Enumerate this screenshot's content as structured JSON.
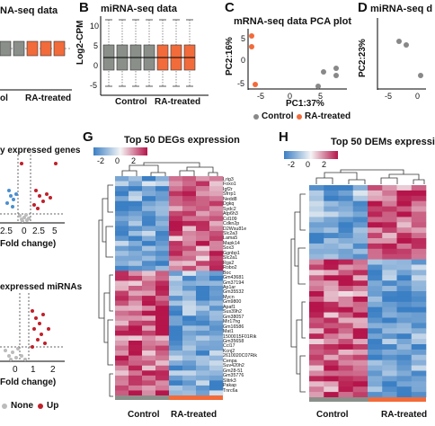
{
  "panels": {
    "A": {
      "title": "NA-seq data",
      "xlabels": [
        "ol",
        "RA-treated"
      ]
    },
    "B": {
      "label": "B",
      "title": "miRNA-seq data",
      "ylabel": "Log2-CPM",
      "xlabels": [
        "Control",
        "RA-treated"
      ],
      "yticks": [
        "10",
        "5",
        "0",
        "-5"
      ]
    },
    "C": {
      "label": "C",
      "title": "mRNA-seq data PCA plot",
      "xlabel": "PC1:37%",
      "ylabel": "PC2:16%",
      "xticks": [
        "-5",
        "0",
        "5"
      ],
      "yticks": [
        "5",
        "0",
        "-5"
      ],
      "legend": [
        {
          "label": "Control",
          "color": "#888888"
        },
        {
          "label": "RA-treated",
          "color": "#f26b3a"
        }
      ]
    },
    "D": {
      "label": "D",
      "title": "miRNA-seq d",
      "ylabel": "PC2:23%",
      "xticks": [
        "-5",
        "0"
      ]
    },
    "E": {
      "title": "y expressed genes",
      "xticks": [
        "2.5",
        "0",
        "2.5",
        "5"
      ],
      "xlabel": "Fold change)"
    },
    "F": {
      "title": "expressed miRNAs",
      "xticks": [
        "0",
        "1",
        "2"
      ],
      "xlabel": "Fold change)",
      "legend": [
        {
          "label": "None",
          "color": "#bbbbbb"
        },
        {
          "label": "Up",
          "color": "#c0202a"
        }
      ]
    },
    "G": {
      "label": "G",
      "title": "Top 50 DEGs expression",
      "colorbar_ticks": [
        "-2",
        "0",
        "2"
      ],
      "groups": [
        "Control",
        "RA-treated"
      ],
      "genes": [
        "Lrig3",
        "Foxo1",
        "Igf2r",
        "Sfrrp1",
        "Nedd8",
        "Dgkq",
        "Sydc2",
        "Atp6h3",
        "Cd109",
        "Cdkn2p",
        "D2Wsu81e",
        "Slc2a3",
        "Lama5",
        "Mapk14",
        "Sox3",
        "Ggnbp1",
        "Slc2a1",
        "Rgs2",
        "Robo2",
        "Boc",
        "Gm43681",
        "Gm37194",
        "Ap1ar",
        "Gm35532",
        "Mycn",
        "Gm9800",
        "Apaf1",
        "Sus39h2",
        "Gm38057",
        "Mir17hg",
        "Gm16586",
        "Mat1",
        "1500015F01Rik",
        "Gm35658",
        "Ccl17",
        "Kcnj2",
        "2610020C07Rik",
        "Cenpa",
        "Suv420h2",
        "Gm28-51",
        "Gm35776",
        "Slitrk3",
        "Pakap",
        "Tnrc6a"
      ]
    },
    "H": {
      "label": "H",
      "title": "Top 50 DEMs expressi",
      "colorbar_ticks": [
        "-2",
        "0",
        "2"
      ],
      "groups": [
        "Control",
        "RA-treated"
      ]
    }
  },
  "colors": {
    "control": "#8a8f8a",
    "treated": "#f26b3a",
    "up": "#c0202a",
    "down": "#4a8fd0",
    "heat_high": "#b5154a",
    "heat_low": "#3b7fc4"
  }
}
